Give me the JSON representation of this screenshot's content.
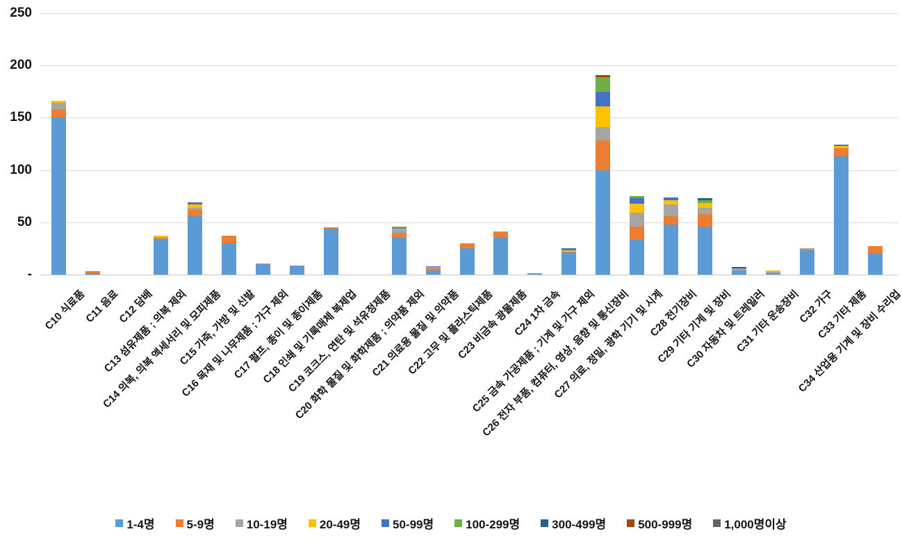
{
  "chart_data": {
    "type": "bar",
    "stacked": true,
    "title": "",
    "xlabel": "",
    "ylabel": "",
    "ylim": [
      0,
      250
    ],
    "grid": true,
    "legend_position": "bottom",
    "y_ticks": [
      {
        "value": 250,
        "label": "250"
      },
      {
        "value": 200,
        "label": "200"
      },
      {
        "value": 150,
        "label": "150"
      },
      {
        "value": 100,
        "label": "100"
      },
      {
        "value": 50,
        "label": "50"
      },
      {
        "value": 0,
        "label": "-"
      }
    ],
    "categories": [
      "C10 식료품",
      "C11 음료",
      "C12 담배",
      "C13 섬유제품 ; 의복 제외",
      "C14 의복, 의복 액세서리 및 모피제품",
      "C15 가죽, 가방 및 신발",
      "C16 목재 및 나무제품 ; 가구 제외",
      "C17 펄프, 종이 및 종이제품",
      "C18 인쇄 및 기록매체 복제업",
      "C19 코크스, 연탄 및 석유정제품",
      "C20 화학 물질 및 화학제품 ; 의약품 제외",
      "C21 의료용 물질 및 의약품",
      "C22 고무 및 플라스틱제품",
      "C23 비금속 광물제품",
      "C24 1차 금속",
      "C25 금속 가공제품 ; 기계 및 가구 제외",
      "C26 전자 부품, 컴퓨터, 영상, 음향 및 통신장비",
      "C27 의료, 정밀, 광학 기기 및 시계",
      "C28 전기장비",
      "C29 기타 기계 및 장비",
      "C30 자동차 및 트레일러",
      "C31 기타 운송장비",
      "C32 가구",
      "C33 기타 제품",
      "C34 산업용 기계 및 장비 수리업"
    ],
    "series": [
      {
        "name": "1-4명",
        "color": "#5B9BD5",
        "values": [
          150,
          1.5,
          0,
          34,
          56,
          30,
          10,
          8.5,
          44,
          0,
          36,
          4,
          25,
          36,
          1.5,
          21,
          100,
          33,
          48,
          46,
          4,
          1.5,
          23,
          113,
          20
        ]
      },
      {
        "name": "5-9명",
        "color": "#ED7D31",
        "values": [
          8,
          1.5,
          0,
          0.5,
          6,
          7,
          0.5,
          0,
          1,
          0,
          4,
          2,
          5,
          5,
          0,
          1,
          28,
          13,
          8,
          12,
          0,
          0,
          1,
          8,
          7
        ]
      },
      {
        "name": "10-19명",
        "color": "#A5A5A5",
        "values": [
          6.5,
          0,
          0,
          1.5,
          2,
          0,
          0,
          0,
          0,
          0,
          3,
          1,
          0,
          0,
          0,
          0,
          13,
          13,
          11,
          5.5,
          2,
          1,
          1.5,
          0,
          0
        ]
      },
      {
        "name": "20-49명",
        "color": "#FFC000",
        "values": [
          1.5,
          0,
          0,
          1.5,
          3,
          0,
          0,
          0,
          0,
          0,
          1,
          0,
          0,
          0,
          0,
          1.5,
          20,
          9,
          4,
          5,
          0,
          1.5,
          0,
          2,
          0
        ]
      },
      {
        "name": "50-99명",
        "color": "#4472C4",
        "values": [
          0,
          0,
          0,
          0,
          2,
          0,
          0,
          0,
          0,
          0,
          0.5,
          1,
          0,
          0,
          0,
          2,
          14,
          5,
          2.5,
          0,
          0,
          0,
          0,
          1.5,
          0
        ]
      },
      {
        "name": "100-299명",
        "color": "#70AD47",
        "values": [
          0,
          0,
          0,
          0,
          0,
          0,
          0,
          0,
          0,
          0,
          1.5,
          0,
          0,
          0,
          0,
          0,
          14,
          2,
          0,
          2.5,
          0,
          0,
          0,
          0,
          0
        ]
      },
      {
        "name": "300-499명",
        "color": "#255E91",
        "values": [
          0,
          0,
          0,
          0,
          0,
          0,
          0,
          0,
          0,
          0,
          0,
          0,
          0,
          0,
          0,
          0,
          0,
          0,
          0,
          2,
          1.5,
          0,
          0,
          0,
          0
        ]
      },
      {
        "name": "500-999명",
        "color": "#9E480E",
        "values": [
          0,
          0,
          0,
          0,
          0,
          0,
          0,
          0,
          0,
          0,
          0,
          0,
          0,
          0,
          0,
          0,
          2,
          0,
          0,
          0,
          0,
          0,
          0,
          0,
          0
        ]
      },
      {
        "name": "1,000명이상",
        "color": "#636363",
        "values": [
          0,
          0,
          0,
          0,
          0,
          0,
          0,
          0,
          0,
          0,
          0,
          0,
          0,
          0,
          0,
          0,
          0,
          0,
          0,
          0,
          0,
          0,
          0,
          0,
          0
        ]
      }
    ]
  }
}
